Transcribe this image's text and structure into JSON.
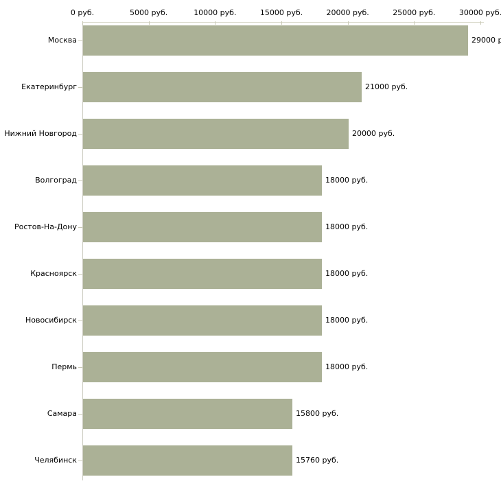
{
  "chart_data": {
    "type": "bar",
    "orientation": "horizontal",
    "title": "",
    "categories": [
      "Москва",
      "Екатеринбург",
      "Нижний Новгород",
      "Волгоград",
      "Ростов-На-Дону",
      "Красноярск",
      "Новосибирск",
      "Пермь",
      "Самара",
      "Челябинск"
    ],
    "values": [
      29000,
      21000,
      20000,
      18000,
      18000,
      18000,
      18000,
      18000,
      15800,
      15760
    ],
    "value_labels": [
      "29000 р",
      "21000 руб.",
      "20000 руб.",
      "18000 руб.",
      "18000 руб.",
      "18000 руб.",
      "18000 руб.",
      "18000 руб.",
      "15800 руб.",
      "15760 руб."
    ],
    "x_axis": {
      "position": "top",
      "xlim": [
        0,
        30000
      ],
      "ticks": [
        0,
        5000,
        10000,
        15000,
        20000,
        25000,
        30000
      ],
      "tick_labels": [
        "0 руб.",
        "5000 руб.",
        "10000 руб.",
        "15000 руб.",
        "20000 руб.",
        "25000 руб.",
        "30000 руб."
      ]
    },
    "ylabel": "",
    "xlabel": "",
    "legend": "none",
    "grid": false,
    "colors": {
      "bar_fill": "#abb196",
      "axis_line": "#d6d6c6",
      "tick_mark": "#c9c9b5",
      "text": "#000000",
      "background": "#ffffff"
    }
  }
}
